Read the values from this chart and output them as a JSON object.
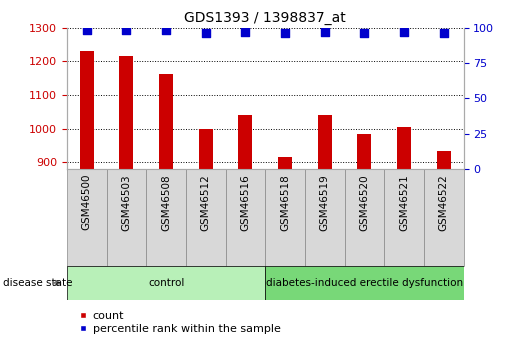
{
  "title": "GDS1393 / 1398837_at",
  "samples": [
    "GSM46500",
    "GSM46503",
    "GSM46508",
    "GSM46512",
    "GSM46516",
    "GSM46518",
    "GSM46519",
    "GSM46520",
    "GSM46521",
    "GSM46522"
  ],
  "counts": [
    1232,
    1215,
    1162,
    998,
    1040,
    916,
    1040,
    983,
    1005,
    935
  ],
  "percentiles": [
    98,
    98,
    98,
    96,
    97,
    96,
    97,
    96,
    97,
    96
  ],
  "ylim_left": [
    880,
    1300
  ],
  "ylim_right": [
    0,
    100
  ],
  "yticks_left": [
    900,
    1000,
    1100,
    1200,
    1300
  ],
  "yticks_right": [
    0,
    25,
    50,
    75,
    100
  ],
  "groups": [
    {
      "label": "control",
      "indices": [
        0,
        1,
        2,
        3,
        4
      ],
      "color": "#b8f0b8"
    },
    {
      "label": "diabetes-induced erectile dysfunction",
      "indices": [
        5,
        6,
        7,
        8,
        9
      ],
      "color": "#78d878"
    }
  ],
  "bar_color": "#cc0000",
  "dot_color": "#0000cc",
  "tick_color_left": "#cc0000",
  "tick_color_right": "#0000cc",
  "sample_box_color": "#d8d8d8",
  "disease_state_label": "disease state",
  "legend_count_label": "count",
  "legend_percentile_label": "percentile rank within the sample",
  "bar_width": 0.35,
  "dot_size": 40,
  "n_samples": 10
}
